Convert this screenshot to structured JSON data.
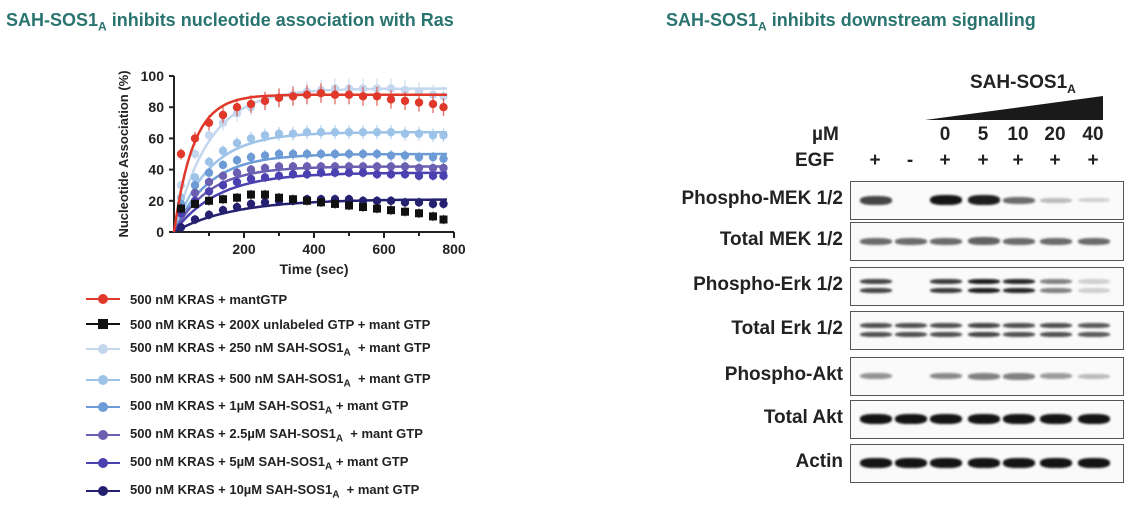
{
  "left_panel": {
    "title": "SAH-SOS1",
    "title_sub": "A",
    "title_rest": " inhibits nucleotide association with Ras"
  },
  "right_panel": {
    "title": "SAH-SOS1",
    "title_sub": "A",
    "title_rest": " inhibits downstream signalling",
    "treatment_label": "SAH-SOS1",
    "treatment_sub": "A",
    "um_label": "µM",
    "egf_label": "EGF",
    "um_values": [
      "",
      "",
      "0",
      "5",
      "10",
      "20",
      "40"
    ],
    "egf_values": [
      "+",
      "-",
      "+",
      "+",
      "+",
      "+",
      "+"
    ],
    "blots": [
      {
        "label": "Phospho-MEK 1/2",
        "intensity": [
          0.75,
          0.0,
          1.0,
          0.95,
          0.55,
          0.15,
          0.05
        ]
      },
      {
        "label": "Total MEK 1/2",
        "intensity": [
          0.55,
          0.55,
          0.55,
          0.6,
          0.55,
          0.55,
          0.55
        ]
      },
      {
        "label": "Phospho-Erk 1/2",
        "intensity": [
          0.75,
          0.0,
          0.8,
          0.95,
          0.9,
          0.45,
          0.05
        ]
      },
      {
        "label": "Total Erk 1/2",
        "intensity": [
          0.7,
          0.7,
          0.7,
          0.75,
          0.7,
          0.7,
          0.65
        ]
      },
      {
        "label": "Phospho-Akt",
        "intensity": [
          0.35,
          0.0,
          0.4,
          0.45,
          0.45,
          0.3,
          0.15
        ]
      },
      {
        "label": "Total Akt",
        "intensity": [
          1.0,
          1.0,
          1.0,
          1.0,
          1.0,
          1.0,
          1.0
        ]
      },
      {
        "label": "Actin",
        "intensity": [
          1.0,
          1.0,
          1.0,
          1.0,
          1.0,
          1.0,
          1.0
        ]
      }
    ]
  },
  "chart_data": {
    "type": "scatter",
    "xlabel": "Time (sec)",
    "ylabel": "Nucleotide Association (%)",
    "xlim": [
      0,
      800
    ],
    "ylim": [
      0,
      100
    ],
    "xticks": [
      "200",
      "400",
      "600",
      "800"
    ],
    "yticks": [
      "0",
      "20",
      "40",
      "60",
      "80",
      "100"
    ],
    "x": [
      20,
      60,
      100,
      140,
      180,
      220,
      260,
      300,
      340,
      380,
      420,
      460,
      500,
      540,
      580,
      620,
      660,
      700,
      740,
      770
    ],
    "series": [
      {
        "name": "500 nM KRAS + mantGTP",
        "name_sub": "",
        "name_rest": "",
        "color": "#e0392b",
        "marker": "circle",
        "values": [
          50,
          60,
          70,
          75,
          80,
          82,
          84,
          86,
          87,
          88,
          89,
          88,
          88,
          87,
          87,
          85,
          84,
          83,
          82,
          80
        ],
        "fit_plateau": 88,
        "fit_k": 0.018
      },
      {
        "name": "500 nM KRAS + 200X unlabeled GTP  + mant GTP",
        "name_sub": "",
        "name_rest": "",
        "color": "#111111",
        "marker": "square",
        "values": [
          15,
          18,
          20,
          21,
          22,
          24,
          24,
          22,
          21,
          20,
          19,
          18,
          17,
          16,
          15,
          14,
          13,
          12,
          10,
          8
        ],
        "fit_plateau": 0,
        "fit_k": 0
      },
      {
        "name": "500 nM KRAS + 250 nM SAH-SOS1",
        "name_sub": "A",
        "name_rest": "  + mant GTP",
        "color": "#c5d7ee",
        "marker": "circle",
        "values": [
          30,
          50,
          62,
          70,
          76,
          80,
          84,
          86,
          88,
          90,
          91,
          92,
          92,
          92,
          92,
          92,
          91,
          90,
          88,
          87
        ],
        "fit_plateau": 92,
        "fit_k": 0.01
      },
      {
        "name": "500 nM KRAS + 500 nM SAH-SOS1",
        "name_sub": "A",
        "name_rest": "  + mant GTP",
        "color": "#9ec3e8",
        "marker": "circle",
        "values": [
          22,
          35,
          45,
          52,
          57,
          60,
          62,
          63,
          63,
          64,
          64,
          64,
          64,
          64,
          64,
          64,
          63,
          63,
          62,
          62
        ],
        "fit_plateau": 64,
        "fit_k": 0.01
      },
      {
        "name": "500 nM KRAS + 1µM SAH-SOS1",
        "name_sub": "A",
        "name_rest": " + mant GTP",
        "color": "#6c9bd6",
        "marker": "circle",
        "values": [
          18,
          30,
          38,
          43,
          46,
          48,
          49,
          50,
          50,
          50,
          50,
          50,
          50,
          50,
          50,
          49,
          49,
          48,
          48,
          47
        ],
        "fit_plateau": 50,
        "fit_k": 0.01
      },
      {
        "name": "500 nM KRAS + 2.5µM SAH-SOS1",
        "name_sub": "A",
        "name_rest": "  + mant GTP",
        "color": "#6a5fb0",
        "marker": "circle",
        "values": [
          15,
          25,
          32,
          36,
          38,
          40,
          41,
          42,
          42,
          42,
          42,
          42,
          42,
          42,
          42,
          42,
          42,
          41,
          41,
          41
        ],
        "fit_plateau": 42,
        "fit_k": 0.01
      },
      {
        "name": "500 nM KRAS + 5µM SAH-SOS1",
        "name_sub": "A",
        "name_rest": " + mant GTP",
        "color": "#4a40b0",
        "marker": "circle",
        "values": [
          12,
          20,
          26,
          30,
          32,
          34,
          35,
          36,
          37,
          37,
          38,
          38,
          38,
          38,
          37,
          37,
          37,
          36,
          36,
          36
        ],
        "fit_plateau": 38,
        "fit_k": 0.008
      },
      {
        "name": "500 nM KRAS + 10µM SAH-SOS1",
        "name_sub": "A",
        "name_rest": "  + mant GTP",
        "color": "#252070",
        "marker": "circle",
        "values": [
          3,
          8,
          11,
          14,
          16,
          18,
          19,
          20,
          20,
          21,
          21,
          21,
          21,
          20,
          20,
          20,
          19,
          19,
          18,
          18
        ],
        "fit_plateau": 21,
        "fit_k": 0.006
      }
    ]
  }
}
